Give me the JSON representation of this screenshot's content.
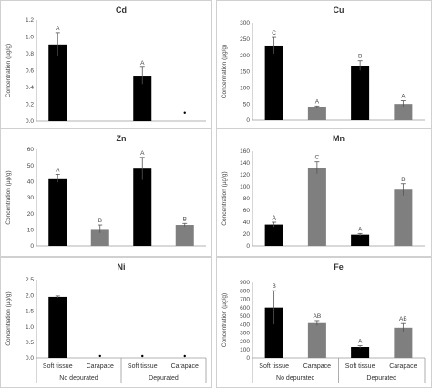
{
  "colors": {
    "no_depurated_soft_tissue": "#000000",
    "gray_bar": "#7f7f7f",
    "depurated_soft_tissue": "#000000"
  },
  "x_axis": {
    "categories": [
      "Soft tissue",
      "Carapace",
      "Soft tissue",
      "Carapace"
    ],
    "groups": [
      "No depurated",
      "Depurated"
    ]
  },
  "chart_data": [
    {
      "type": "bar",
      "title": "Cd",
      "ylabel": "Concentration (µg/g)",
      "ylim": [
        0,
        1.2
      ],
      "yticks": [
        0,
        0.2,
        0.4,
        0.6,
        0.8,
        1.0,
        1.2
      ],
      "ytick_labels": [
        "0.0",
        "0.2",
        "0.4",
        "0.6",
        "0.8",
        "1.0",
        "1.2"
      ],
      "categories": [
        "Soft tissue",
        "Carapace",
        "Soft tissue",
        "Carapace"
      ],
      "values": [
        0.91,
        0,
        0.54,
        0.1
      ],
      "errors": [
        0.14,
        0,
        0.1,
        0
      ],
      "letters": [
        "A",
        "",
        "A",
        ""
      ],
      "marker_only": [
        false,
        false,
        false,
        true
      ],
      "colors": [
        "#000000",
        "#7f7f7f",
        "#000000",
        "#7f7f7f"
      ]
    },
    {
      "type": "bar",
      "title": "Cu",
      "ylabel": "Concentration (µg/g)",
      "ylim": [
        0,
        300
      ],
      "yticks": [
        0,
        50,
        100,
        150,
        200,
        250,
        300
      ],
      "ytick_labels": [
        "0",
        "50",
        "100",
        "150",
        "200",
        "250",
        "300"
      ],
      "categories": [
        "Soft tissue",
        "Carapace",
        "Soft tissue",
        "Carapace"
      ],
      "values": [
        230,
        40,
        168,
        50
      ],
      "errors": [
        25,
        4,
        15,
        10
      ],
      "letters": [
        "C",
        "A",
        "B",
        "A"
      ],
      "marker_only": [
        false,
        false,
        false,
        false
      ],
      "colors": [
        "#000000",
        "#7f7f7f",
        "#000000",
        "#7f7f7f"
      ]
    },
    {
      "type": "bar",
      "title": "Zn",
      "ylabel": "Concentration (µg/g)",
      "ylim": [
        0,
        60
      ],
      "yticks": [
        0,
        10,
        20,
        30,
        40,
        50,
        60
      ],
      "ytick_labels": [
        "0",
        "10",
        "20",
        "30",
        "40",
        "50",
        "60"
      ],
      "categories": [
        "Soft tissue",
        "Carapace",
        "Soft tissue",
        "Carapace"
      ],
      "values": [
        42,
        10.5,
        48,
        13
      ],
      "errors": [
        2.5,
        2.5,
        7,
        1
      ],
      "letters": [
        "A",
        "B",
        "A",
        "B"
      ],
      "marker_only": [
        false,
        false,
        false,
        false
      ],
      "colors": [
        "#000000",
        "#7f7f7f",
        "#000000",
        "#7f7f7f"
      ]
    },
    {
      "type": "bar",
      "title": "Mn",
      "ylabel": "Concentration (µg/g)",
      "ylim": [
        0,
        160
      ],
      "yticks": [
        0,
        20,
        40,
        60,
        80,
        100,
        120,
        140,
        160
      ],
      "ytick_labels": [
        "0",
        "20",
        "40",
        "60",
        "80",
        "100",
        "120",
        "140",
        "160"
      ],
      "categories": [
        "Soft tissue",
        "Carapace",
        "Soft tissue",
        "Carapace"
      ],
      "values": [
        36,
        132,
        19,
        95
      ],
      "errors": [
        4,
        10,
        2,
        10
      ],
      "letters": [
        "A",
        "C",
        "A",
        "B"
      ],
      "marker_only": [
        false,
        false,
        false,
        false
      ],
      "colors": [
        "#000000",
        "#7f7f7f",
        "#000000",
        "#7f7f7f"
      ]
    },
    {
      "type": "bar",
      "title": "Ni",
      "ylabel": "Concentration (µg/g)",
      "ylim": [
        0,
        2.5
      ],
      "yticks": [
        0,
        0.5,
        1.0,
        1.5,
        2.0,
        2.5
      ],
      "ytick_labels": [
        "0.0",
        "0.5",
        "1.0",
        "1.5",
        "2.0",
        "2.5"
      ],
      "categories": [
        "Soft tissue",
        "Carapace",
        "Soft tissue",
        "Carapace"
      ],
      "values": [
        1.95,
        0.06,
        0.05,
        0.05
      ],
      "errors": [
        0.03,
        0,
        0,
        0
      ],
      "letters": [
        "",
        "",
        "",
        ""
      ],
      "marker_only": [
        false,
        true,
        true,
        true
      ],
      "colors": [
        "#000000",
        "#7f7f7f",
        "#000000",
        "#7f7f7f"
      ]
    },
    {
      "type": "bar",
      "title": "Fe",
      "ylabel": "Concentration (µg/g)",
      "ylim": [
        0,
        900
      ],
      "yticks": [
        0,
        100,
        200,
        300,
        400,
        500,
        600,
        700,
        800,
        900
      ],
      "ytick_labels": [
        "0",
        "100",
        "200",
        "300",
        "400",
        "500",
        "600",
        "700",
        "800",
        "900"
      ],
      "categories": [
        "Soft tissue",
        "Carapace",
        "Soft tissue",
        "Carapace"
      ],
      "values": [
        600,
        415,
        130,
        360
      ],
      "errors": [
        200,
        30,
        15,
        50
      ],
      "letters": [
        "B",
        "AB",
        "A",
        "AB"
      ],
      "marker_only": [
        false,
        false,
        false,
        false
      ],
      "colors": [
        "#000000",
        "#7f7f7f",
        "#000000",
        "#7f7f7f"
      ]
    }
  ]
}
